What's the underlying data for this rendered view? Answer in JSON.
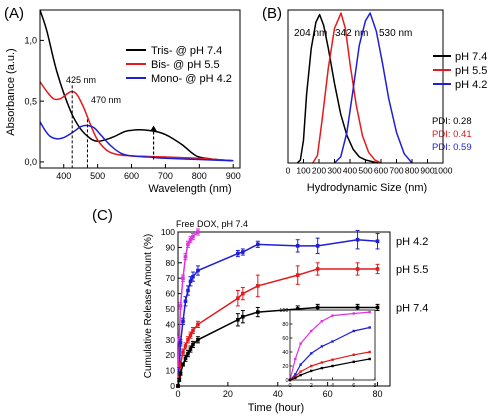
{
  "panels": [
    {
      "label": "(A)",
      "ylabel": "Absorbance (a.u.)",
      "xlabel": "Wavelength (nm)",
      "annotations": [
        "425 nm",
        "470 nm"
      ]
    },
    {
      "label": "(B)",
      "xlabel": "Hydrodynamic Size (nm)",
      "peak_labels": [
        "204 nm",
        "342 nm",
        "530 nm"
      ],
      "pdi": [
        {
          "text": "PDI: 0.28",
          "color": "#000000"
        },
        {
          "text": "PDI: 0.41",
          "color": "#e41a1c"
        },
        {
          "text": "PDI: 0.59",
          "color": "#1f1fd6"
        }
      ]
    },
    {
      "label": "(C)",
      "ylabel": "Cumulative Release Amount (%)",
      "xlabel": "Time (hour)",
      "annotations": [
        "Free DOX, pH 7.4"
      ]
    }
  ],
  "chart_data": [
    {
      "type": "line",
      "xlabel": "Wavelength (nm)",
      "ylabel": "Absorbance (a.u.)",
      "xlim": [
        330,
        920
      ],
      "ylim": [
        -0.05,
        1.25
      ],
      "xticks": [
        400,
        500,
        600,
        700,
        800,
        900
      ],
      "yticks": [
        0.0,
        0.5,
        1.0
      ],
      "ytick_labels": [
        "0,0",
        "0,5",
        "1,0"
      ],
      "legend": "top-right",
      "series": [
        {
          "name": "Tris- @ pH 7.4",
          "color": "#000000",
          "x": [
            330,
            350,
            380,
            420,
            450,
            480,
            500,
            520,
            550,
            580,
            600,
            620,
            650,
            680,
            700,
            720,
            750,
            780,
            800,
            850,
            900
          ],
          "y": [
            1.25,
            1.08,
            0.74,
            0.42,
            0.27,
            0.19,
            0.17,
            0.18,
            0.21,
            0.25,
            0.26,
            0.265,
            0.26,
            0.245,
            0.225,
            0.195,
            0.14,
            0.07,
            0.04,
            0.02,
            0.01
          ]
        },
        {
          "name": "Bis- @ pH 5.5",
          "color": "#e41a1c",
          "x": [
            330,
            350,
            370,
            390,
            410,
            425,
            440,
            460,
            480,
            500,
            530,
            560,
            600,
            650,
            700,
            750,
            800,
            850,
            900
          ],
          "y": [
            0.66,
            0.58,
            0.52,
            0.52,
            0.56,
            0.58,
            0.55,
            0.44,
            0.3,
            0.18,
            0.09,
            0.06,
            0.05,
            0.045,
            0.04,
            0.035,
            0.03,
            0.02,
            0.01
          ]
        },
        {
          "name": "Mono- @ pH 4.2",
          "color": "#1f1fd6",
          "x": [
            330,
            345,
            360,
            380,
            400,
            430,
            450,
            470,
            490,
            510,
            540,
            570,
            600,
            650,
            700,
            800,
            900
          ],
          "y": [
            0.33,
            0.26,
            0.21,
            0.19,
            0.2,
            0.25,
            0.29,
            0.3,
            0.28,
            0.22,
            0.13,
            0.07,
            0.05,
            0.04,
            0.03,
            0.02,
            0.01
          ]
        }
      ],
      "arrow": {
        "x": 665,
        "y_from": 0.02,
        "y_to": 0.3
      }
    },
    {
      "type": "line",
      "xlabel": "Hydrodynamic Size (nm)",
      "xlim": [
        0,
        1000
      ],
      "ylim": [
        0,
        1.0
      ],
      "xticks": [
        0,
        100,
        200,
        300,
        400,
        500,
        600,
        700,
        800,
        900,
        1000
      ],
      "legend": "top-right",
      "series": [
        {
          "name": "pH 7.4",
          "color": "#000000",
          "x": [
            60,
            80,
            100,
            120,
            150,
            180,
            204,
            230,
            260,
            300,
            340,
            380,
            420,
            460,
            500,
            540,
            580
          ],
          "y": [
            0,
            0.02,
            0.15,
            0.45,
            0.75,
            0.92,
            0.97,
            0.9,
            0.75,
            0.52,
            0.32,
            0.18,
            0.09,
            0.04,
            0.02,
            0.01,
            0
          ]
        },
        {
          "name": "pH 5.5",
          "color": "#e41a1c",
          "x": [
            160,
            190,
            220,
            260,
            300,
            342,
            370,
            400,
            440,
            480,
            520,
            560,
            600
          ],
          "y": [
            0,
            0.05,
            0.28,
            0.62,
            0.88,
            0.98,
            0.88,
            0.65,
            0.38,
            0.18,
            0.07,
            0.02,
            0
          ]
        },
        {
          "name": "pH 4.2",
          "color": "#1f1fd6",
          "x": [
            300,
            340,
            380,
            420,
            460,
            500,
            530,
            570,
            610,
            650,
            700,
            750,
            800
          ],
          "y": [
            0,
            0.04,
            0.2,
            0.48,
            0.77,
            0.93,
            0.98,
            0.86,
            0.65,
            0.42,
            0.2,
            0.06,
            0
          ]
        }
      ]
    },
    {
      "type": "line",
      "xlabel": "Time (hour)",
      "ylabel": "Cumulative Release Amount (%)",
      "xlim": [
        0,
        85
      ],
      "ylim": [
        0,
        100
      ],
      "xticks": [
        0,
        20,
        40,
        60,
        80
      ],
      "yticks": [
        0,
        10,
        20,
        30,
        40,
        50,
        60,
        70,
        80,
        90,
        100
      ],
      "series": [
        {
          "name": "Free DOX, pH 7.4",
          "color": "#e033e0",
          "x": [
            0,
            0.5,
            1,
            2,
            3,
            4,
            5,
            6,
            8
          ],
          "y": [
            0,
            30,
            52,
            70,
            84,
            92,
            95,
            97,
            100
          ],
          "err": [
            0,
            2,
            2,
            2,
            2,
            2,
            2,
            2,
            2
          ]
        },
        {
          "name": "pH 4.2",
          "color": "#1f1fd6",
          "x": [
            0,
            0.5,
            1,
            2,
            3,
            4,
            5,
            6,
            8,
            24,
            26,
            32,
            48,
            56,
            72,
            80
          ],
          "y": [
            0,
            10,
            28,
            42,
            55,
            62,
            68,
            71,
            75,
            86,
            87,
            92,
            91,
            91,
            95,
            94
          ],
          "err": [
            0,
            2,
            2,
            2,
            3,
            3,
            3,
            3,
            3,
            2,
            2,
            2,
            4,
            5,
            6,
            5
          ]
        },
        {
          "name": "pH 5.5",
          "color": "#e41a1c",
          "x": [
            0,
            0.5,
            1,
            2,
            3,
            4,
            5,
            6,
            8,
            24,
            26,
            32,
            48,
            56,
            72,
            80
          ],
          "y": [
            0,
            6,
            14,
            22,
            26,
            30,
            33,
            36,
            40,
            57,
            60,
            65,
            72,
            76,
            76,
            76
          ],
          "err": [
            0,
            1,
            1,
            2,
            2,
            2,
            2,
            2,
            2,
            5,
            4,
            7,
            6,
            4,
            4,
            3
          ]
        },
        {
          "name": "pH 7.4",
          "color": "#000000",
          "x": [
            0,
            0.5,
            1,
            2,
            3,
            4,
            5,
            6,
            8,
            24,
            26,
            32,
            48,
            56,
            72,
            80
          ],
          "y": [
            0,
            4,
            8,
            14,
            18,
            21,
            24,
            27,
            30,
            43,
            45,
            48,
            50,
            51,
            51,
            51
          ],
          "err": [
            0,
            1,
            1,
            1,
            2,
            2,
            2,
            2,
            2,
            4,
            4,
            3,
            2,
            2,
            2,
            2
          ]
        }
      ],
      "series_labels": [
        "pH 4.2",
        "pH 5.5",
        "pH 7.4"
      ],
      "inset": {
        "xlim": [
          0,
          8
        ],
        "ylim": [
          0,
          100
        ],
        "xticks": [
          0,
          2,
          4,
          6,
          8
        ],
        "yticks": [
          0,
          20,
          40,
          60,
          80,
          100
        ],
        "series": [
          {
            "color": "#e033e0",
            "x": [
              0,
              0.5,
              1,
              2,
              3,
              4,
              6,
              7.5
            ],
            "y": [
              0,
              30,
              52,
              70,
              84,
              92,
              95,
              97
            ]
          },
          {
            "color": "#1f1fd6",
            "x": [
              0,
              0.5,
              1,
              2,
              3,
              4,
              6,
              7.5
            ],
            "y": [
              0,
              8,
              22,
              38,
              48,
              55,
              70,
              75
            ]
          },
          {
            "color": "#e41a1c",
            "x": [
              0,
              0.5,
              1,
              2,
              3,
              4,
              6,
              7.5
            ],
            "y": [
              0,
              5,
              12,
              20,
              25,
              29,
              36,
              40
            ]
          },
          {
            "color": "#000000",
            "x": [
              0,
              0.5,
              1,
              2,
              3,
              4,
              6,
              7.5
            ],
            "y": [
              0,
              3,
              7,
              13,
              17,
              20,
              26,
              30
            ]
          }
        ]
      }
    }
  ]
}
